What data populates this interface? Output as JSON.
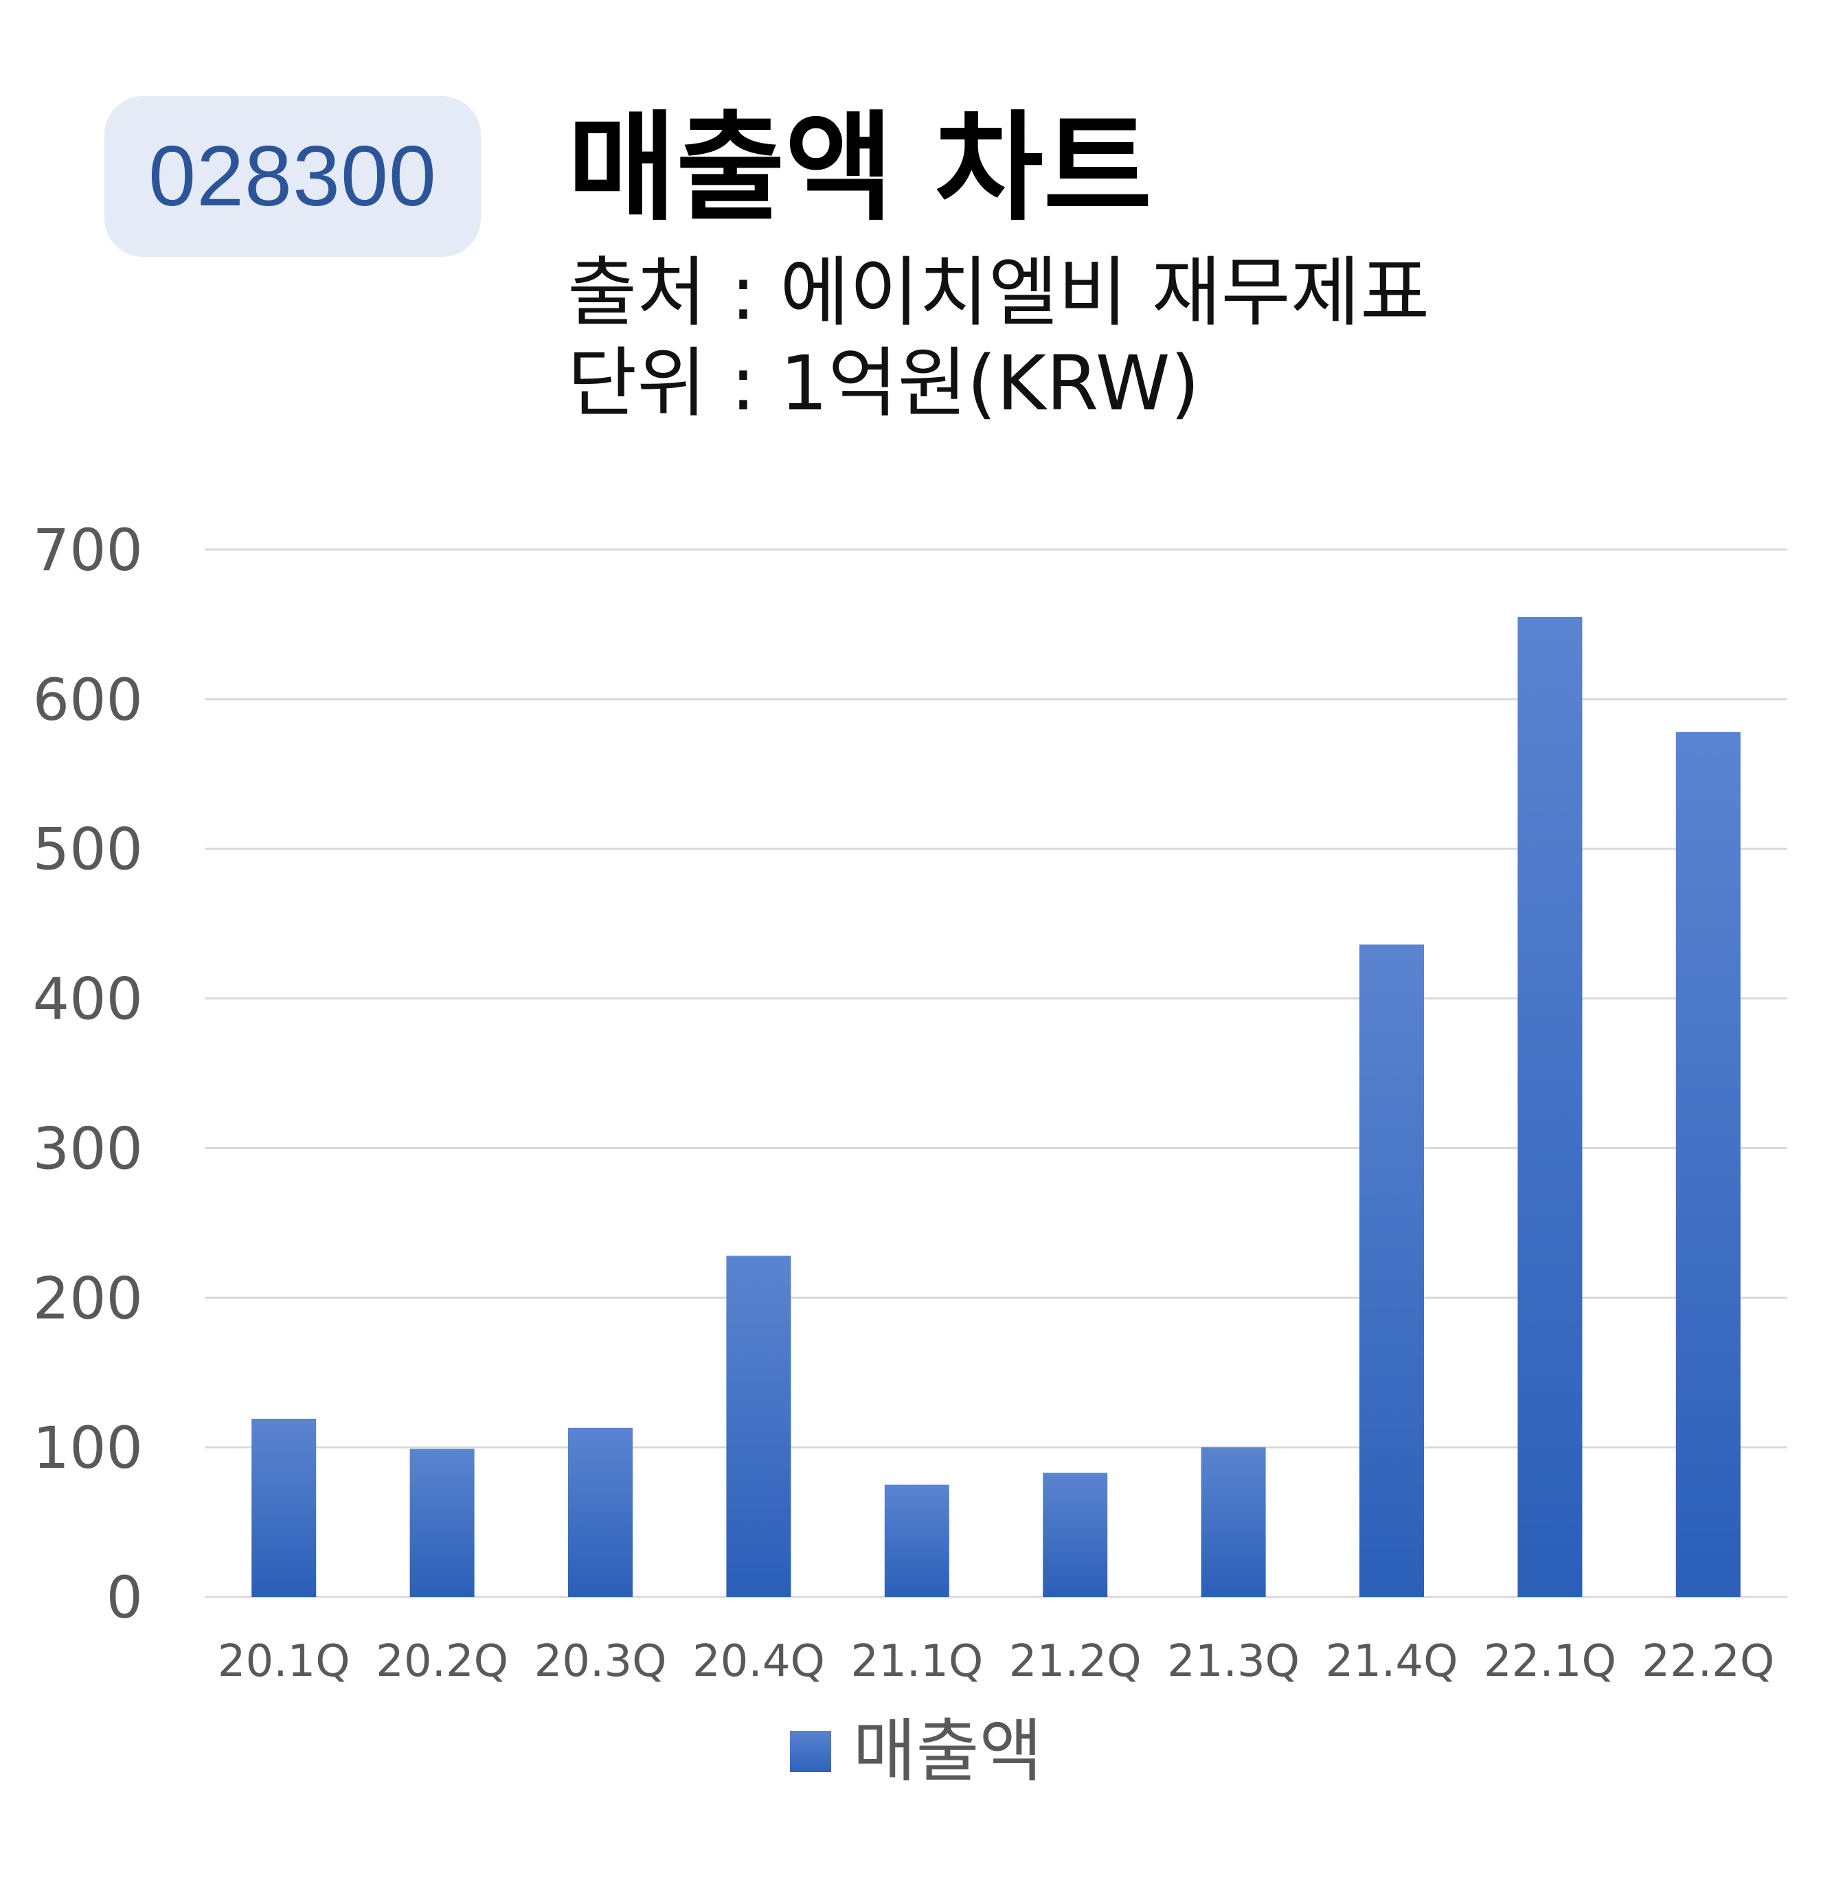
{
  "header": {
    "ticker": "028300",
    "title": "매출액 차트",
    "source": "출처 : 에이치엘비 재무제표",
    "unit": "단위 : 1억원(KRW)"
  },
  "colors": {
    "bar_top": "#5b84d0",
    "bar_bottom": "#2b5fb8",
    "badge_bg": "#e4eaf6",
    "badge_text": "#2c5599",
    "grid": "#d9d9d9",
    "tick_text": "#595959"
  },
  "chart_data": {
    "type": "bar",
    "title": "매출액 차트",
    "categories": [
      "20.1Q",
      "20.2Q",
      "20.3Q",
      "20.4Q",
      "21.1Q",
      "21.2Q",
      "21.3Q",
      "21.4Q",
      "22.1Q",
      "22.2Q"
    ],
    "series": [
      {
        "name": "매출액",
        "values": [
          119,
          99,
          113,
          228,
          75,
          83,
          100,
          436,
          655,
          578
        ]
      }
    ],
    "yticks": [
      0,
      100,
      200,
      300,
      400,
      500,
      600,
      700
    ],
    "ylim": [
      0,
      700
    ],
    "grid": true,
    "legend": "bottom-center"
  }
}
